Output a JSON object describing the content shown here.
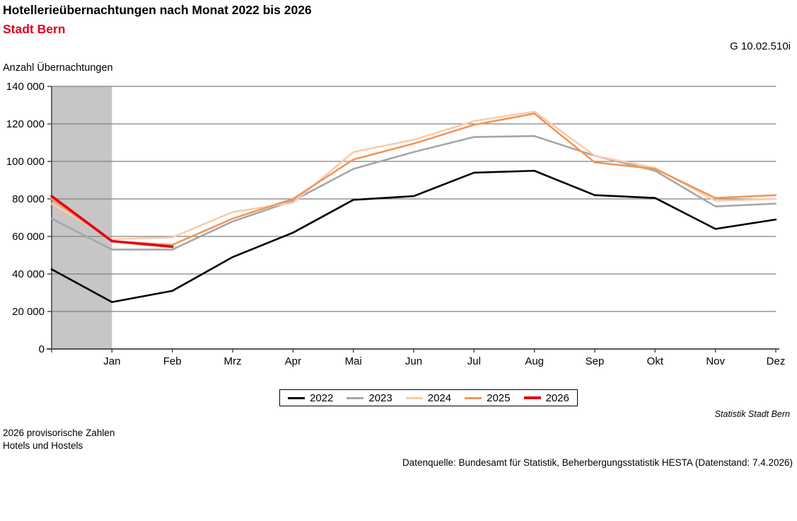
{
  "header": {
    "title": "Hotellerieübernachtungen nach Monat 2022 bis 2026",
    "subtitle": "Stadt Bern",
    "subtitle_color": "#e2001a",
    "chart_id": "G 10.02.510i"
  },
  "chart_data": {
    "type": "line",
    "title": "Hotellerieübernachtungen nach Monat 2022 bis 2026",
    "subtitle": "Stadt Bern",
    "ylabel": "Anzahl Übernachtungen",
    "xlabel": "",
    "grid": true,
    "legend_position": "bottom",
    "ylim": [
      0,
      140000
    ],
    "ytick_step": 20000,
    "ytick_labels": [
      "0",
      "20 000",
      "40 000",
      "60 000",
      "80 000",
      "100 000",
      "120 000",
      "140 000"
    ],
    "categories": [
      "",
      "Jan",
      "Feb",
      "Mrz",
      "Apr",
      "Mai",
      "Jun",
      "Jul",
      "Aug",
      "Sep",
      "Okt",
      "Nov",
      "Dez"
    ],
    "highlight_band": {
      "from_index": 0,
      "to_index": 1,
      "color": "#c6c6c6"
    },
    "series": [
      {
        "name": "2022",
        "color": "#000000",
        "stroke_width": 2.6,
        "values": [
          42500,
          25000,
          31000,
          49000,
          62000,
          79500,
          81500,
          94000,
          95000,
          82000,
          80500,
          64000,
          69000
        ]
      },
      {
        "name": "2023",
        "color": "#a6a6a6",
        "stroke_width": 2.6,
        "values": [
          69500,
          53000,
          53000,
          68000,
          79000,
          96000,
          105000,
          113000,
          113500,
          103000,
          95000,
          76000,
          77500
        ]
      },
      {
        "name": "2024",
        "color": "#f8cbad",
        "stroke_width": 2.6,
        "values": [
          77500,
          58500,
          59500,
          73000,
          78000,
          105000,
          111500,
          121500,
          126500,
          103000,
          96500,
          79000,
          80000
        ]
      },
      {
        "name": "2025",
        "color": "#f0975a",
        "stroke_width": 2.6,
        "values": [
          80000,
          57500,
          55500,
          69500,
          80000,
          101000,
          109500,
          119500,
          125500,
          99500,
          96000,
          80500,
          82000
        ]
      },
      {
        "name": "2026",
        "color": "#e30613",
        "stroke_width": 3.6,
        "values": [
          81500,
          57500,
          54500
        ]
      }
    ],
    "colors": {
      "gridline": "#7f7f7f",
      "axis": "#404040",
      "band": "#c6c6c6"
    }
  },
  "legend": {
    "items": [
      {
        "label": "2022",
        "color": "#000000",
        "thickness": 3
      },
      {
        "label": "2023",
        "color": "#a6a6a6",
        "thickness": 3
      },
      {
        "label": "2024",
        "color": "#f8cbad",
        "thickness": 3
      },
      {
        "label": "2025",
        "color": "#f0975a",
        "thickness": 3
      },
      {
        "label": "2026",
        "color": "#e30613",
        "thickness": 4
      }
    ]
  },
  "footnotes": {
    "branding": "Statistik Stadt Bern",
    "note_line1": "2026 provisorische Zahlen",
    "note_line2": "Hotels und Hostels",
    "source": "Datenquelle: Bundesamt für Statistik, Beherbergungsstatistik HESTA (Datenstand: 7.4.2026)"
  }
}
